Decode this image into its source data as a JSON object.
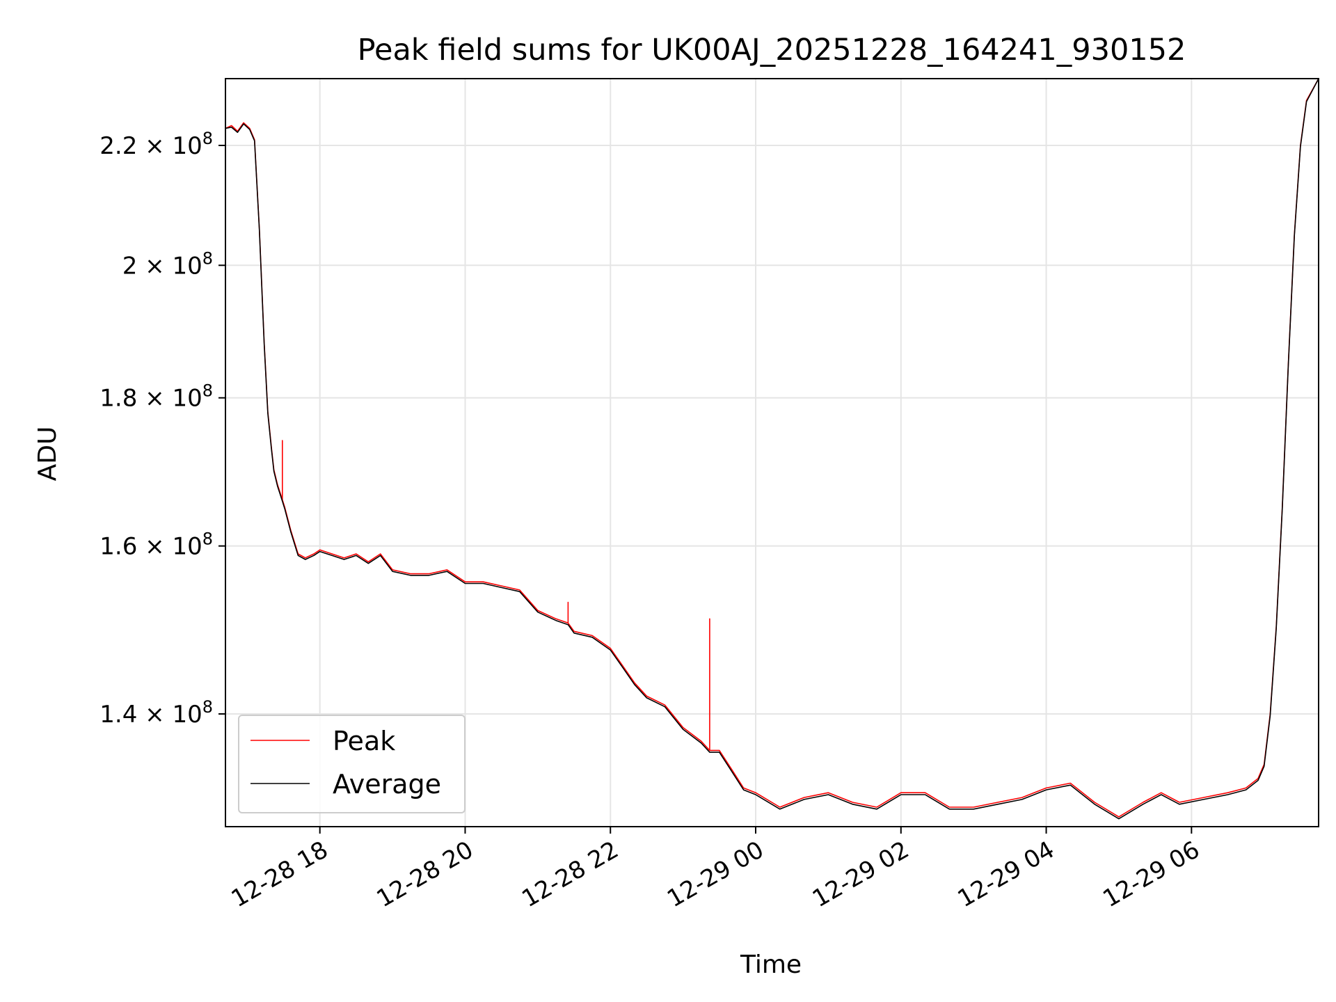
{
  "chart_data": {
    "type": "line",
    "title": "Peak field sums for UK00AJ_20251228_164241_930152",
    "xlabel": "Time",
    "ylabel": "ADU",
    "xlim": [
      "2025-12-28 16:42",
      "2025-12-29 07:45"
    ],
    "ylim": [
      128000000,
      232000000
    ],
    "yscale": "log",
    "grid": true,
    "legend_position": "lower-left",
    "x_ticks": [
      {
        "time": "2025-12-28 18:00",
        "label": "12-28 18"
      },
      {
        "time": "2025-12-28 20:00",
        "label": "12-28 20"
      },
      {
        "time": "2025-12-28 22:00",
        "label": "12-28 22"
      },
      {
        "time": "2025-12-29 00:00",
        "label": "12-29 00"
      },
      {
        "time": "2025-12-29 02:00",
        "label": "12-29 02"
      },
      {
        "time": "2025-12-29 04:00",
        "label": "12-29 04"
      },
      {
        "time": "2025-12-29 06:00",
        "label": "12-29 06"
      }
    ],
    "y_ticks": [
      {
        "value": 140000000,
        "mantissa": "1.4",
        "base": "10",
        "exp": "8"
      },
      {
        "value": 160000000,
        "mantissa": "1.6",
        "base": "10",
        "exp": "8"
      },
      {
        "value": 180000000,
        "mantissa": "1.8",
        "base": "10",
        "exp": "8"
      },
      {
        "value": 200000000,
        "mantissa": "2",
        "base": "10",
        "exp": "8"
      },
      {
        "value": 220000000,
        "mantissa": "2.2",
        "base": "10",
        "exp": "8"
      }
    ],
    "series": [
      {
        "name": "Peak",
        "color": "#ff0000",
        "x": [
          "2025-12-28 16:42",
          "2025-12-28 16:47",
          "2025-12-28 16:52",
          "2025-12-28 16:57",
          "2025-12-28 17:02",
          "2025-12-28 17:06",
          "2025-12-28 17:10",
          "2025-12-28 17:14",
          "2025-12-28 17:17",
          "2025-12-28 17:20",
          "2025-12-28 17:22",
          "2025-12-28 17:25",
          "2025-12-28 17:27",
          "2025-12-28 17:29",
          "2025-12-28 17:29",
          "2025-12-28 17:29",
          "2025-12-28 17:31",
          "2025-12-28 17:36",
          "2025-12-28 17:42",
          "2025-12-28 17:48",
          "2025-12-28 17:55",
          "2025-12-28 18:00",
          "2025-12-28 18:10",
          "2025-12-28 18:20",
          "2025-12-28 18:30",
          "2025-12-28 18:40",
          "2025-12-28 18:50",
          "2025-12-28 19:00",
          "2025-12-28 19:15",
          "2025-12-28 19:30",
          "2025-12-28 19:45",
          "2025-12-28 20:00",
          "2025-12-28 20:15",
          "2025-12-28 20:30",
          "2025-12-28 20:45",
          "2025-12-28 21:00",
          "2025-12-28 21:15",
          "2025-12-28 21:25",
          "2025-12-28 21:25",
          "2025-12-28 21:25",
          "2025-12-28 21:30",
          "2025-12-28 21:45",
          "2025-12-28 22:00",
          "2025-12-28 22:10",
          "2025-12-28 22:20",
          "2025-12-28 22:30",
          "2025-12-28 22:45",
          "2025-12-28 23:00",
          "2025-12-28 23:15",
          "2025-12-28 23:22",
          "2025-12-28 23:22",
          "2025-12-28 23:22",
          "2025-12-28 23:30",
          "2025-12-28 23:40",
          "2025-12-28 23:50",
          "2025-12-29 00:00",
          "2025-12-29 00:20",
          "2025-12-29 00:40",
          "2025-12-29 01:00",
          "2025-12-29 01:20",
          "2025-12-29 01:40",
          "2025-12-29 02:00",
          "2025-12-29 02:20",
          "2025-12-29 02:40",
          "2025-12-29 03:00",
          "2025-12-29 03:20",
          "2025-12-29 03:40",
          "2025-12-29 04:00",
          "2025-12-29 04:20",
          "2025-12-29 04:40",
          "2025-12-29 05:00",
          "2025-12-29 05:20",
          "2025-12-29 05:35",
          "2025-12-29 05:50",
          "2025-12-29 06:10",
          "2025-12-29 06:30",
          "2025-12-29 06:45",
          "2025-12-29 06:55",
          "2025-12-29 07:00",
          "2025-12-29 07:05",
          "2025-12-29 07:10",
          "2025-12-29 07:15",
          "2025-12-29 07:20",
          "2025-12-29 07:25",
          "2025-12-29 07:30",
          "2025-12-29 07:35",
          "2025-12-29 07:45"
        ],
        "values": [
          223000000,
          223500000,
          222500000,
          224000000,
          223000000,
          221000000,
          206000000,
          188000000,
          178000000,
          173000000,
          170000000,
          168000000,
          167000000,
          166000000,
          174000000,
          166000000,
          165000000,
          162000000,
          159000000,
          158500000,
          159000000,
          159500000,
          159000000,
          158500000,
          159000000,
          158000000,
          159000000,
          157000000,
          156500000,
          156500000,
          157000000,
          155500000,
          155500000,
          155000000,
          154500000,
          152000000,
          151000000,
          150500000,
          153000000,
          150500000,
          149500000,
          149000000,
          147500000,
          145500000,
          143500000,
          142000000,
          141000000,
          138500000,
          137000000,
          136000000,
          151000000,
          136000000,
          136000000,
          134000000,
          132000000,
          131500000,
          130000000,
          131000000,
          131500000,
          130500000,
          130000000,
          131500000,
          131500000,
          130000000,
          130000000,
          130500000,
          131000000,
          132000000,
          132500000,
          130500000,
          129000000,
          130500000,
          131500000,
          130500000,
          131000000,
          131500000,
          132000000,
          133000000,
          134500000,
          140000000,
          150000000,
          165000000,
          185000000,
          205000000,
          220000000,
          228000000,
          232000000
        ]
      },
      {
        "name": "Average",
        "color": "#000000",
        "x": [
          "2025-12-28 16:42",
          "2025-12-28 16:47",
          "2025-12-28 16:52",
          "2025-12-28 16:57",
          "2025-12-28 17:02",
          "2025-12-28 17:06",
          "2025-12-28 17:10",
          "2025-12-28 17:14",
          "2025-12-28 17:17",
          "2025-12-28 17:20",
          "2025-12-28 17:22",
          "2025-12-28 17:25",
          "2025-12-28 17:27",
          "2025-12-28 17:29",
          "2025-12-28 17:31",
          "2025-12-28 17:36",
          "2025-12-28 17:42",
          "2025-12-28 17:48",
          "2025-12-28 17:55",
          "2025-12-28 18:00",
          "2025-12-28 18:10",
          "2025-12-28 18:20",
          "2025-12-28 18:30",
          "2025-12-28 18:40",
          "2025-12-28 18:50",
          "2025-12-28 19:00",
          "2025-12-28 19:15",
          "2025-12-28 19:30",
          "2025-12-28 19:45",
          "2025-12-28 20:00",
          "2025-12-28 20:15",
          "2025-12-28 20:30",
          "2025-12-28 20:45",
          "2025-12-28 21:00",
          "2025-12-28 21:15",
          "2025-12-28 21:25",
          "2025-12-28 21:30",
          "2025-12-28 21:45",
          "2025-12-28 22:00",
          "2025-12-28 22:10",
          "2025-12-28 22:20",
          "2025-12-28 22:30",
          "2025-12-28 22:45",
          "2025-12-28 23:00",
          "2025-12-28 23:15",
          "2025-12-28 23:22",
          "2025-12-28 23:30",
          "2025-12-28 23:40",
          "2025-12-28 23:50",
          "2025-12-29 00:00",
          "2025-12-29 00:20",
          "2025-12-29 00:40",
          "2025-12-29 01:00",
          "2025-12-29 01:20",
          "2025-12-29 01:40",
          "2025-12-29 02:00",
          "2025-12-29 02:20",
          "2025-12-29 02:40",
          "2025-12-29 03:00",
          "2025-12-29 03:20",
          "2025-12-29 03:40",
          "2025-12-29 04:00",
          "2025-12-29 04:20",
          "2025-12-29 04:40",
          "2025-12-29 05:00",
          "2025-12-29 05:20",
          "2025-12-29 05:35",
          "2025-12-29 05:50",
          "2025-12-29 06:10",
          "2025-12-29 06:30",
          "2025-12-29 06:45",
          "2025-12-29 06:55",
          "2025-12-29 07:00",
          "2025-12-29 07:05",
          "2025-12-29 07:10",
          "2025-12-29 07:15",
          "2025-12-29 07:20",
          "2025-12-29 07:25",
          "2025-12-29 07:30",
          "2025-12-29 07:35",
          "2025-12-29 07:45"
        ],
        "values": [
          223000000,
          223200000,
          222300000,
          223800000,
          222800000,
          220800000,
          205800000,
          187800000,
          177800000,
          172800000,
          169800000,
          167800000,
          166800000,
          165800000,
          164800000,
          161800000,
          158800000,
          158300000,
          158800000,
          159300000,
          158800000,
          158300000,
          158800000,
          157800000,
          158800000,
          156800000,
          156300000,
          156300000,
          156800000,
          155300000,
          155300000,
          154800000,
          154300000,
          151800000,
          150800000,
          150300000,
          149300000,
          148800000,
          147300000,
          145300000,
          143300000,
          141800000,
          140800000,
          138300000,
          136800000,
          135800000,
          135800000,
          133800000,
          131800000,
          131300000,
          129800000,
          130800000,
          131300000,
          130300000,
          129800000,
          131300000,
          131300000,
          129800000,
          129800000,
          130300000,
          130800000,
          131800000,
          132300000,
          130300000,
          128800000,
          130300000,
          131300000,
          130300000,
          130800000,
          131300000,
          131800000,
          132800000,
          134300000,
          139800000,
          149800000,
          164800000,
          184800000,
          204800000,
          219800000,
          227800000,
          232000000
        ]
      }
    ]
  }
}
